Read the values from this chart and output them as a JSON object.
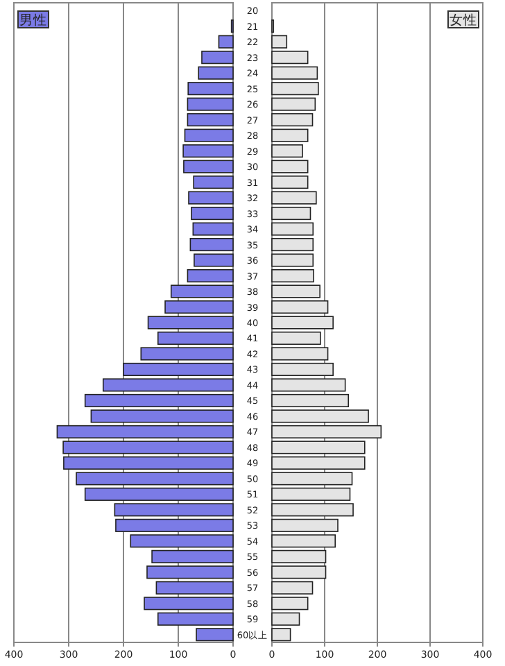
{
  "chart_data": [
    {
      "type": "bar",
      "orientation": "horizontal",
      "categories": [
        null,
        null,
        null,
        null,
        null,
        null,
        null,
        null,
        null,
        null,
        null,
        null,
        null,
        null,
        null,
        null,
        null,
        null,
        null,
        null,
        null,
        null,
        null,
        null,
        null,
        null,
        null,
        null,
        null,
        null,
        null,
        null,
        null,
        null,
        null,
        null,
        null,
        null,
        null,
        null,
        null
      ],
      "series": [
        {
          "name": "男性",
          "color": "#7b7be6",
          "values": [
            0,
            3,
            26,
            57,
            63,
            82,
            83,
            83,
            88,
            91,
            90,
            72,
            81,
            76,
            73,
            78,
            71,
            83,
            113,
            124,
            155,
            137,
            168,
            200,
            237,
            270,
            259,
            321,
            310,
            309,
            286,
            270,
            216,
            214,
            187,
            148,
            157,
            140,
            162,
            137,
            67
          ]
        }
      ],
      "xlim": [
        400,
        0
      ],
      "xticks": [
        400,
        300,
        200,
        100,
        0
      ],
      "grid": "x",
      "legend": "top left",
      "tick_labels": "x"
    },
    {
      "type": "bar",
      "orientation": "horizontal",
      "categories": [
        "20",
        "21",
        "22",
        "23",
        "24",
        "25",
        "26",
        "27",
        "28",
        "29",
        "30",
        "31",
        "32",
        "33",
        "34",
        "35",
        "36",
        "37",
        "38",
        "39",
        "40",
        "41",
        "42",
        "43",
        "44",
        "45",
        "46",
        "47",
        "48",
        "49",
        "50",
        "51",
        "52",
        "53",
        "54",
        "55",
        "56",
        "57",
        "58",
        "59",
        "60以上"
      ],
      "series": [
        {
          "name": "女性",
          "color": "#e4e4e4",
          "values": [
            0,
            3,
            28,
            68,
            86,
            88,
            82,
            77,
            68,
            58,
            68,
            68,
            84,
            73,
            78,
            78,
            78,
            79,
            91,
            106,
            116,
            92,
            106,
            116,
            139,
            145,
            183,
            207,
            176,
            176,
            152,
            148,
            154,
            125,
            120,
            102,
            102,
            77,
            68,
            52,
            35
          ]
        }
      ],
      "xlim": [
        0,
        400
      ],
      "xticks": [
        0,
        100,
        200,
        300,
        400
      ],
      "grid": "x",
      "legend": "top right"
    }
  ]
}
